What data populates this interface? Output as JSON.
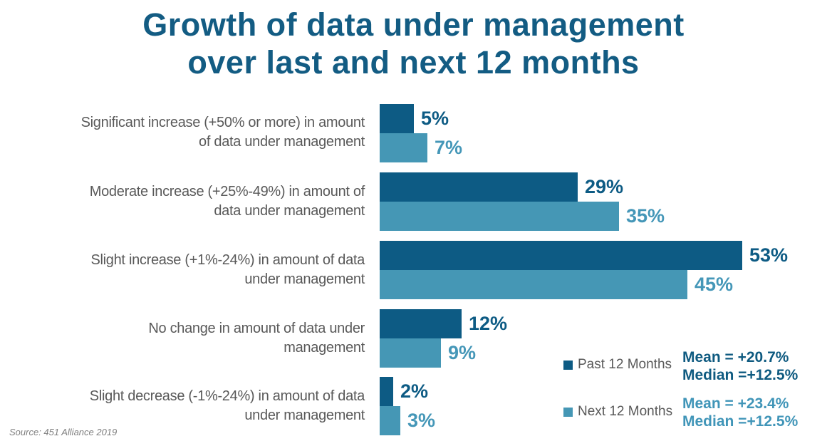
{
  "title": {
    "line1": "Growth of data under management",
    "line2": "over last and next 12 months"
  },
  "source_note": "Source: 451 Alliance 2019",
  "colors": {
    "title": "#135C83",
    "past_bar": "#0D5B84",
    "next_bar": "#4597B5",
    "past_value_text": "#0D5B84",
    "next_value_text": "#4597B8",
    "category_text": "#595959",
    "legend_text": "#595959",
    "past_stats_text": "#0E5A80",
    "next_stats_text": "#4095B8",
    "source_text": "#7F7F7F",
    "background": "#FFFFFF"
  },
  "chart_data": {
    "type": "bar",
    "orientation": "horizontal",
    "title": "Growth of data under management over last and next 12 months",
    "categories": [
      "Significant increase (+50% or more) in amount of data under management",
      "Moderate increase (+25%-49%) in amount of data under management",
      "Slight increase (+1%-24%) in amount of data under management",
      "No change in amount of data under management",
      "Slight decrease (-1%-24%) in amount of data under management"
    ],
    "categories_wrapped": [
      "Significant increase (+50% or more) in amount\nof data under management",
      "Moderate increase (+25%-49%) in amount of\ndata under management",
      "Slight increase (+1%-24%) in amount of data\nunder management",
      "No change in amount of data under\nmanagement",
      "Slight decrease (-1%-24%) in amount of data\nunder management"
    ],
    "series": [
      {
        "name": "Past 12 Months",
        "color": "#0D5B84",
        "values": [
          5,
          29,
          53,
          12,
          2
        ],
        "value_labels": [
          "5%",
          "29%",
          "53%",
          "12%",
          "2%"
        ],
        "stats": {
          "mean": "Mean = +20.7%",
          "median": "Median =+12.5%"
        }
      },
      {
        "name": "Next 12 Months",
        "color": "#4597B5",
        "values": [
          7,
          35,
          45,
          9,
          3
        ],
        "value_labels": [
          "7%",
          "35%",
          "45%",
          "9%",
          "3%"
        ],
        "stats": {
          "mean": "Mean = +23.4%",
          "median": "Median =+12.5%"
        }
      }
    ],
    "xlim": [
      0,
      55
    ],
    "grid": false,
    "axis_ticks_visible": false,
    "value_labels_visible": true,
    "legend_position": "bottom-right",
    "source": "Source: 451 Alliance 2019"
  }
}
